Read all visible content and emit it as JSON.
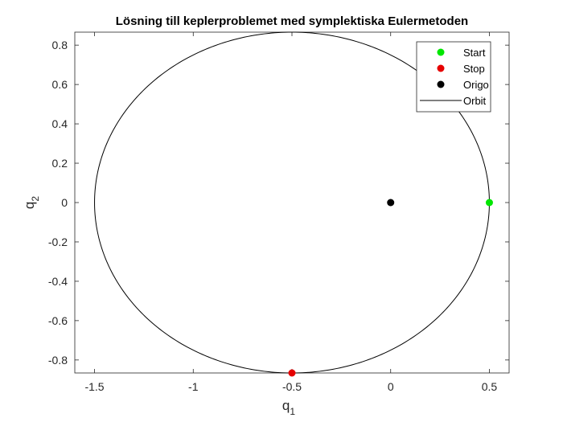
{
  "chart_data": {
    "type": "line",
    "title": "Lösning till keplerproblemet med symplektiska Eulermetoden",
    "xlabel": "q",
    "xlabel_sub": "1",
    "ylabel": "q",
    "ylabel_sub": "2",
    "xlim": [
      -1.6,
      0.6
    ],
    "ylim": [
      -0.866,
      0.866
    ],
    "xticks": [
      -1.5,
      -1,
      -0.5,
      0,
      0.5
    ],
    "xtick_labels": [
      "-1.5",
      "-1",
      "-0.5",
      "0",
      "0.5"
    ],
    "yticks": [
      -0.8,
      -0.6,
      -0.4,
      -0.2,
      0,
      0.2,
      0.4,
      0.6,
      0.8
    ],
    "ytick_labels": [
      "-0.8",
      "-0.6",
      "-0.4",
      "-0.2",
      "0",
      "0.2",
      "0.4",
      "0.6",
      "0.8"
    ],
    "grid": false,
    "legend_position": "top-right",
    "orbit": {
      "name": "Orbit",
      "color": "#000000",
      "center": [
        -0.5,
        0
      ],
      "semi_axes": [
        1.0,
        0.866
      ]
    },
    "points": [
      {
        "name": "Start",
        "x": 0.5,
        "y": 0,
        "color": "#00e600"
      },
      {
        "name": "Stop",
        "x": -0.5,
        "y": -0.866,
        "color": "#e60000"
      },
      {
        "name": "Origo",
        "x": 0,
        "y": 0,
        "color": "#000000"
      }
    ],
    "legend": [
      "Start",
      "Stop",
      "Origo",
      "Orbit"
    ]
  }
}
